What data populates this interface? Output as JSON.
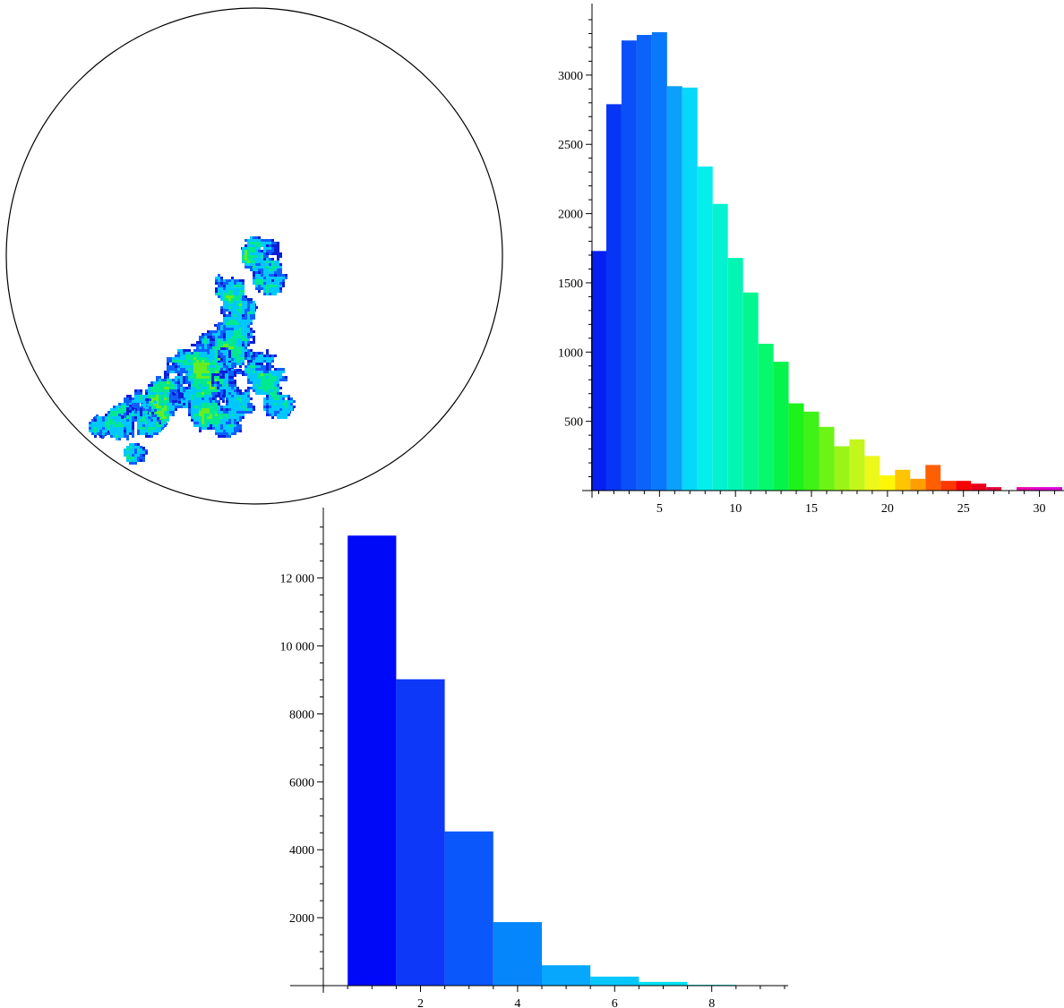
{
  "figure": {
    "walk_panel": {
      "kind": "random-walk visit-density plot inside circular boundary",
      "boundary": "circle",
      "colors": [
        "#0b1fd6",
        "#0f5fff",
        "#00c8ff",
        "#00e890",
        "#66ee22",
        "#ffe000",
        "#ff6a00",
        "#e8001c"
      ]
    }
  },
  "chart_data": [
    {
      "type": "bar",
      "title": "",
      "xlabel": "",
      "ylabel": "",
      "x": [
        1,
        2,
        3,
        4,
        5,
        6,
        7,
        8,
        9,
        10,
        11,
        12,
        13,
        14,
        15,
        16,
        17,
        18,
        19,
        20,
        21,
        22,
        23,
        24,
        25,
        26,
        27,
        28,
        29,
        30,
        31
      ],
      "values": [
        1730,
        2790,
        3250,
        3290,
        3310,
        2920,
        2910,
        2340,
        2070,
        1680,
        1430,
        1060,
        930,
        630,
        570,
        460,
        320,
        370,
        250,
        110,
        150,
        85,
        185,
        70,
        70,
        50,
        25,
        0,
        25,
        25,
        25
      ],
      "colors": [
        "#0520f0",
        "#0735f5",
        "#0a50f8",
        "#0b63fa",
        "#0a78fb",
        "#0aa0fc",
        "#06d8fc",
        "#06eeec",
        "#04f2d0",
        "#03f5b4",
        "#03f690",
        "#05f86e",
        "#06f34c",
        "#1df21b",
        "#3ff217",
        "#6cf416",
        "#9af418",
        "#c2f61c",
        "#ecf81a",
        "#fff606",
        "#ffc402",
        "#ff9e00",
        "#ff5f00",
        "#ff3700",
        "#f70000",
        "#e8001c",
        "#e2003a",
        "#e8007a",
        "#e800a8",
        "#e000c8",
        "#da00d8"
      ],
      "xticks": [
        5,
        10,
        15,
        20,
        25,
        30
      ],
      "xtick_labels": [
        "5",
        "10",
        "15",
        "20",
        "25",
        "30"
      ],
      "yticks": [
        500,
        1000,
        1500,
        2000,
        2500,
        3000
      ],
      "ytick_labels": [
        "500",
        "1000",
        "1500",
        "2000",
        "2500",
        "3000"
      ],
      "xlim": [
        0.5,
        31.5
      ],
      "ylim": [
        0,
        3400
      ],
      "grid": false
    },
    {
      "type": "bar",
      "title": "",
      "xlabel": "",
      "ylabel": "",
      "x": [
        1,
        2,
        3,
        4,
        5,
        6,
        7,
        8,
        9
      ],
      "values": [
        13250,
        9020,
        4540,
        1870,
        600,
        265,
        110,
        25,
        10
      ],
      "colors": [
        "#0008f8",
        "#0e38f8",
        "#0a58fb",
        "#0686fb",
        "#06a7fc",
        "#06c6fc",
        "#00e0f0",
        "#00e8e0",
        "#00e8d0"
      ],
      "xticks": [
        2,
        4,
        6,
        8
      ],
      "xtick_labels": [
        "2",
        "4",
        "6",
        "8"
      ],
      "yticks": [
        2000,
        4000,
        6000,
        8000,
        10000,
        12000
      ],
      "ytick_labels": [
        "2000",
        "4000",
        "6000",
        "8000",
        "10 000",
        "12 000"
      ],
      "xlim": [
        -0.5,
        9.5
      ],
      "ylim": [
        0,
        13600
      ],
      "grid": false
    }
  ]
}
